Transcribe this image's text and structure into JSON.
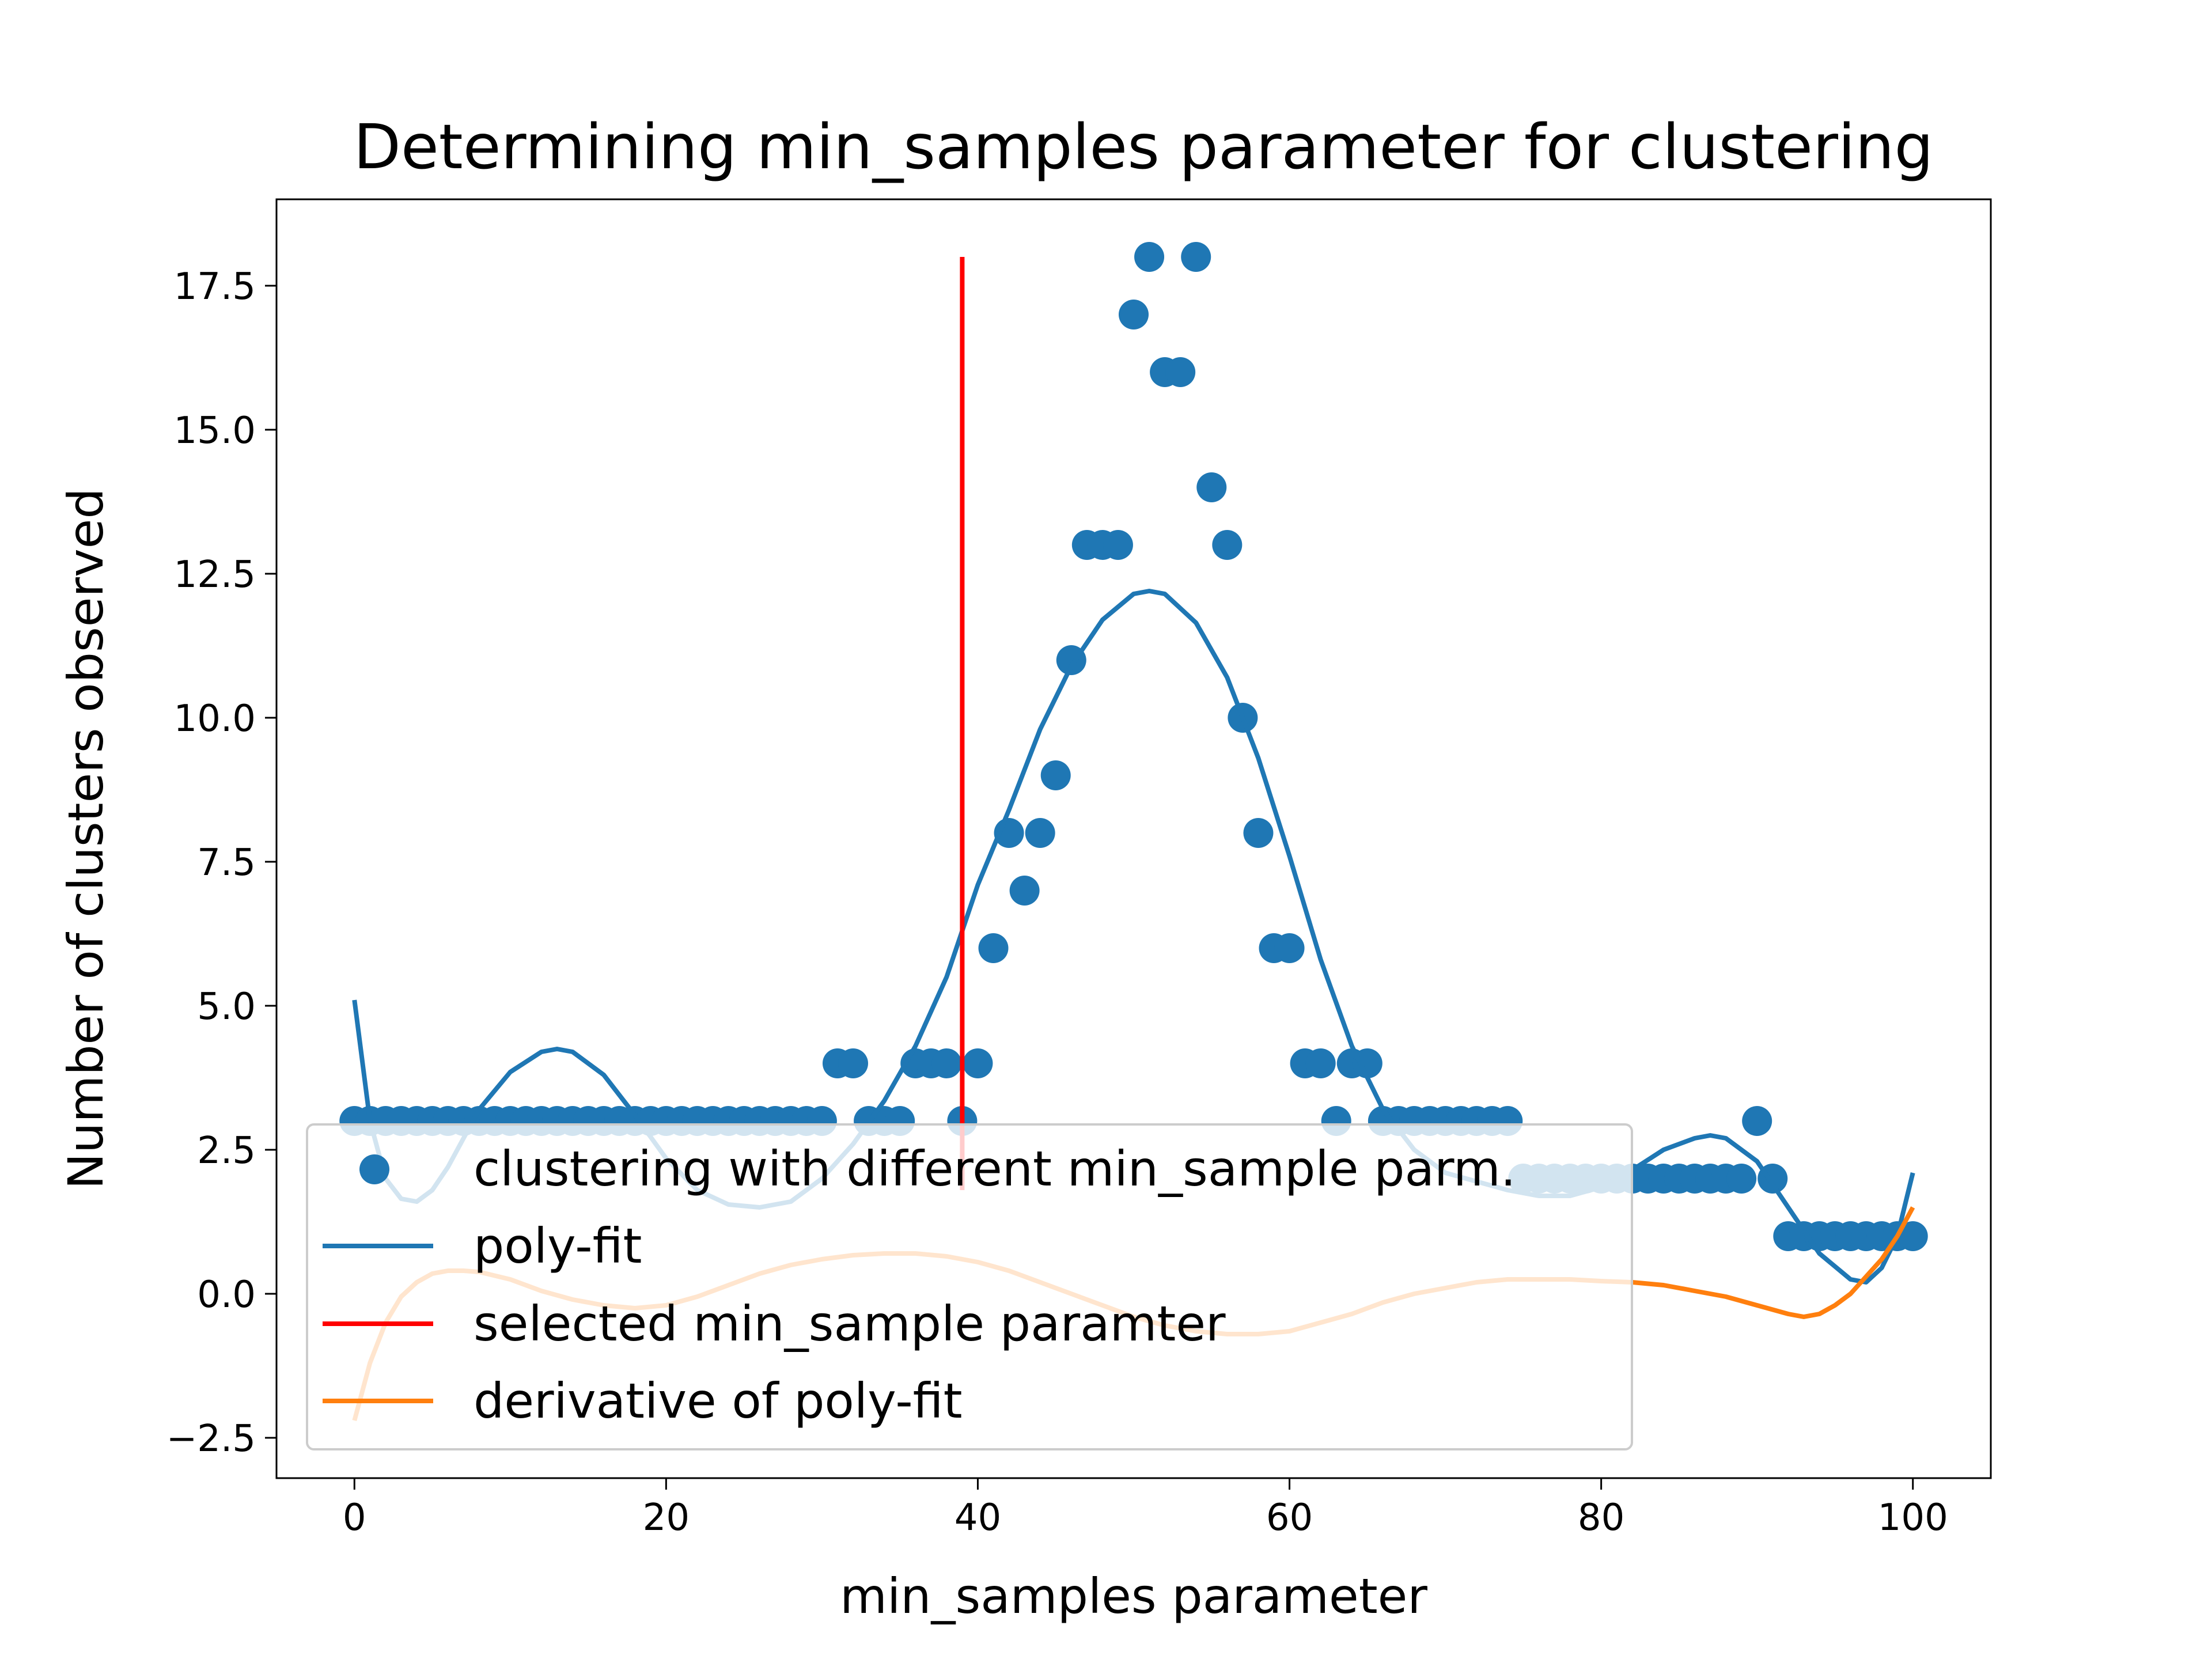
{
  "chart_data": {
    "type": "scatter",
    "title": "Determining min_samples parameter for clustering",
    "xlabel": "min_samples parameter",
    "ylabel": "Number of clusters observed",
    "xlim": [
      -5,
      105
    ],
    "ylim": [
      -3.2,
      19
    ],
    "x_ticks": [
      0,
      20,
      40,
      60,
      80,
      100
    ],
    "x_tick_labels": [
      "0",
      "20",
      "40",
      "60",
      "80",
      "100"
    ],
    "y_ticks": [
      -2.5,
      0.0,
      2.5,
      5.0,
      7.5,
      10.0,
      12.5,
      15.0,
      17.5
    ],
    "y_tick_labels": [
      "−2.5",
      "0.0",
      "2.5",
      "5.0",
      "7.5",
      "10.0",
      "12.5",
      "15.0",
      "17.5"
    ],
    "grid": false,
    "legend_position": "lower-left",
    "series": [
      {
        "name": "clustering with different min_sample parm.",
        "kind": "scatter",
        "color": "#1f77b4",
        "x": [
          0,
          1,
          2,
          3,
          4,
          5,
          6,
          7,
          8,
          9,
          10,
          11,
          12,
          13,
          14,
          15,
          16,
          17,
          18,
          19,
          20,
          21,
          22,
          23,
          24,
          25,
          26,
          27,
          28,
          29,
          30,
          31,
          32,
          33,
          34,
          35,
          36,
          37,
          38,
          39,
          40,
          41,
          42,
          43,
          44,
          45,
          46,
          47,
          48,
          49,
          50,
          51,
          52,
          53,
          54,
          55,
          56,
          57,
          58,
          59,
          60,
          61,
          62,
          63,
          64,
          65,
          66,
          67,
          68,
          69,
          70,
          71,
          72,
          73,
          74,
          75,
          76,
          77,
          78,
          79,
          80,
          81,
          82,
          83,
          84,
          85,
          86,
          87,
          88,
          89,
          90,
          91,
          92,
          93,
          94,
          95,
          96,
          97,
          98,
          99,
          100
        ],
        "y": [
          3,
          3,
          3,
          3,
          3,
          3,
          3,
          3,
          3,
          3,
          3,
          3,
          3,
          3,
          3,
          3,
          3,
          3,
          3,
          3,
          3,
          3,
          3,
          3,
          3,
          3,
          3,
          3,
          3,
          3,
          3,
          4,
          4,
          3,
          3,
          3,
          4,
          4,
          4,
          3,
          4,
          6,
          8,
          7,
          8,
          9,
          11,
          13,
          13,
          13,
          17,
          18,
          16,
          16,
          18,
          14,
          13,
          10,
          8,
          6,
          6,
          4,
          4,
          3,
          4,
          4,
          3,
          3,
          3,
          3,
          3,
          3,
          3,
          3,
          3,
          2,
          2,
          2,
          2,
          2,
          2,
          2,
          2,
          2,
          2,
          2,
          2,
          2,
          2,
          2,
          3,
          2,
          1,
          1,
          1,
          1,
          1,
          1,
          1,
          1,
          1
        ]
      },
      {
        "name": "poly-fit",
        "kind": "line",
        "color": "#1f77b4",
        "x": [
          0,
          1,
          2,
          3,
          4,
          5,
          6,
          7,
          8,
          10,
          12,
          13,
          14,
          16,
          18,
          20,
          22,
          24,
          26,
          28,
          30,
          32,
          34,
          36,
          38,
          40,
          42,
          44,
          46,
          48,
          50,
          51,
          52,
          54,
          56,
          58,
          60,
          62,
          64,
          66,
          68,
          70,
          72,
          74,
          76,
          78,
          80,
          82,
          84,
          86,
          87,
          88,
          90,
          92,
          94,
          96,
          97,
          98,
          99,
          100
        ],
        "y": [
          5.1,
          3.0,
          2.0,
          1.65,
          1.6,
          1.8,
          2.2,
          2.7,
          3.2,
          3.85,
          4.2,
          4.25,
          4.2,
          3.8,
          3.1,
          2.35,
          1.8,
          1.55,
          1.5,
          1.6,
          2.0,
          2.6,
          3.35,
          4.3,
          5.5,
          7.1,
          8.4,
          9.8,
          10.9,
          11.7,
          12.15,
          12.2,
          12.15,
          11.65,
          10.7,
          9.3,
          7.6,
          5.8,
          4.3,
          3.2,
          2.5,
          2.1,
          1.95,
          1.8,
          1.7,
          1.7,
          1.85,
          2.15,
          2.5,
          2.7,
          2.75,
          2.7,
          2.3,
          1.5,
          0.7,
          0.25,
          0.2,
          0.45,
          1.0,
          2.1
        ]
      },
      {
        "name": "selected min_sample paramter",
        "kind": "vline",
        "color": "#ff0000",
        "x": 39,
        "y_range": [
          1.8,
          18
        ]
      },
      {
        "name": "derivative of poly-fit",
        "kind": "line",
        "color": "#ff7f0e",
        "x": [
          0,
          1,
          2,
          3,
          4,
          5,
          6,
          7,
          8,
          10,
          12,
          14,
          16,
          18,
          20,
          22,
          24,
          26,
          28,
          30,
          32,
          34,
          36,
          38,
          40,
          42,
          44,
          46,
          48,
          50,
          52,
          54,
          56,
          58,
          60,
          62,
          64,
          66,
          68,
          70,
          72,
          74,
          76,
          78,
          80,
          82,
          84,
          86,
          88,
          90,
          92,
          93,
          94,
          95,
          96,
          97,
          98,
          99,
          100
        ],
        "y": [
          -2.2,
          -1.2,
          -0.5,
          -0.05,
          0.2,
          0.35,
          0.4,
          0.4,
          0.38,
          0.25,
          0.05,
          -0.1,
          -0.2,
          -0.25,
          -0.2,
          -0.05,
          0.15,
          0.35,
          0.5,
          0.6,
          0.67,
          0.7,
          0.7,
          0.65,
          0.55,
          0.4,
          0.2,
          0.0,
          -0.2,
          -0.4,
          -0.55,
          -0.65,
          -0.7,
          -0.7,
          -0.65,
          -0.5,
          -0.35,
          -0.15,
          0.0,
          0.1,
          0.2,
          0.25,
          0.25,
          0.25,
          0.22,
          0.2,
          0.15,
          0.05,
          -0.05,
          -0.2,
          -0.35,
          -0.4,
          -0.35,
          -0.2,
          0.0,
          0.3,
          0.6,
          1.0,
          1.5
        ]
      }
    ]
  }
}
